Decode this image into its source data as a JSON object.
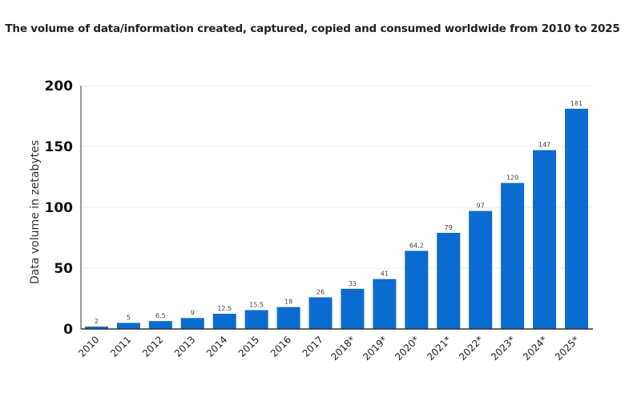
{
  "chart_data": {
    "type": "bar",
    "title": "The volume of data/information created, captured, copied and consumed worldwide from 2010 to 2025",
    "xlabel": "",
    "ylabel": "Data volume in zetabytes",
    "ylim": [
      0,
      200
    ],
    "yticks": [
      0,
      50,
      100,
      150,
      200
    ],
    "grid": true,
    "categories": [
      "2010",
      "2011",
      "2012",
      "2013",
      "2014",
      "2015",
      "2016",
      "2017",
      "2018*",
      "2019*",
      "2020*",
      "2021*",
      "2022*",
      "2023*",
      "2024*",
      "2025*"
    ],
    "values": [
      2,
      5,
      6.5,
      9,
      12.5,
      15.5,
      18,
      26,
      33,
      41,
      64.2,
      79,
      97,
      120,
      147,
      181
    ],
    "bar_color": "#0b6bd1"
  }
}
